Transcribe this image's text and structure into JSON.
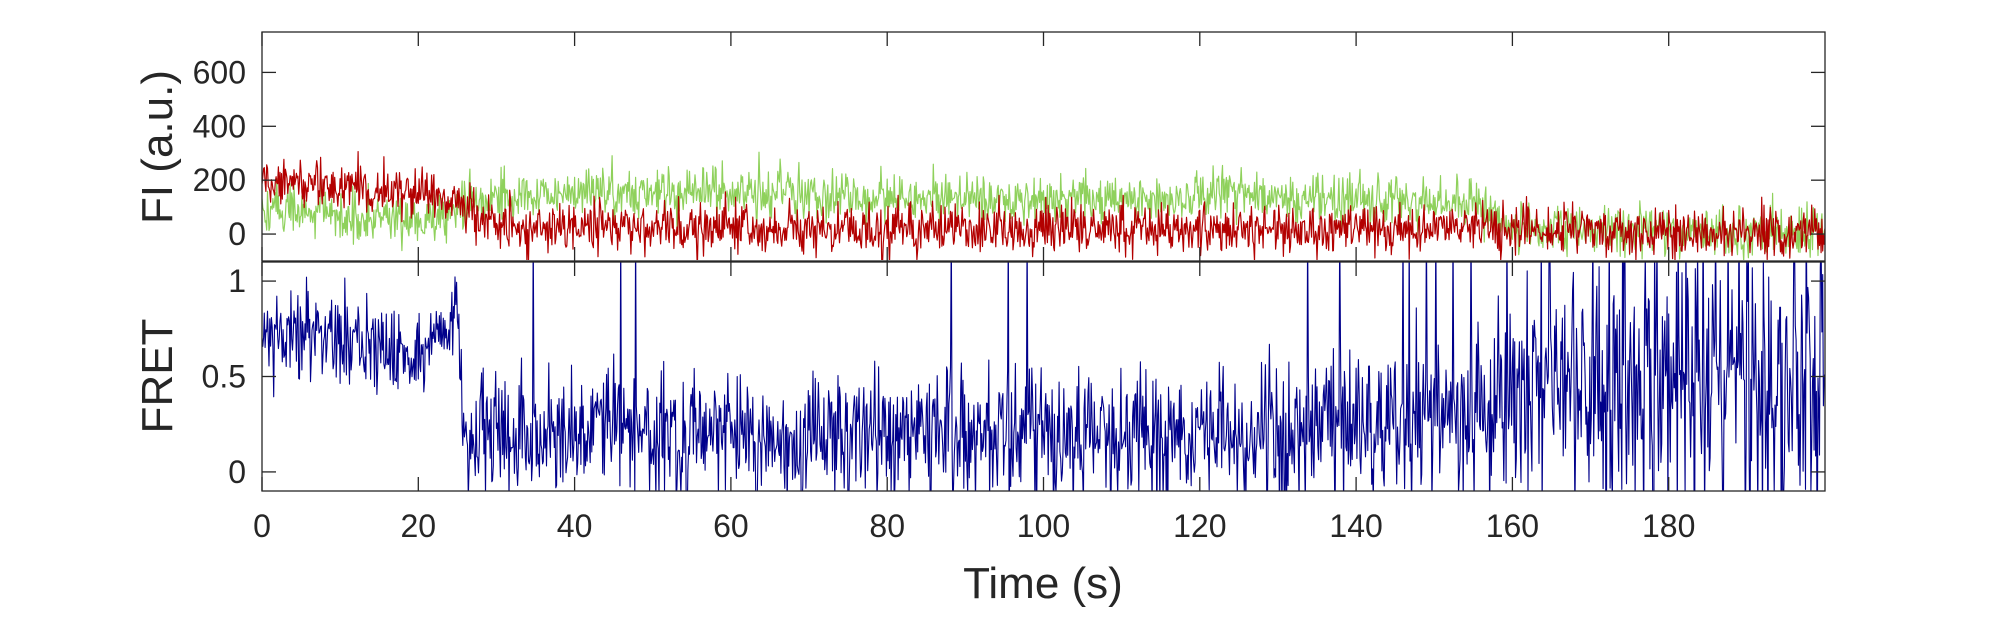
{
  "chart_data": [
    {
      "type": "line",
      "xlabel": "",
      "ylabel": "FI (a.u.)",
      "xlim": [
        0,
        200
      ],
      "ylim": [
        -100,
        750
      ],
      "yticks": [
        0,
        200,
        400,
        600
      ],
      "ytick_labels": [
        "0",
        "200",
        "400",
        "600"
      ],
      "x_tick_labels_shown": false,
      "grid": false,
      "series": [
        {
          "color": "#8fd15c",
          "sample_interval_s": 0.1,
          "mean_profile": {
            "t": [
              0,
              5,
              10,
              15,
              20,
              25,
              30,
              40,
              60,
              80,
              100,
              120,
              140,
              155,
              160,
              180,
              200
            ],
            "value": [
              80,
              90,
              70,
              60,
              50,
              100,
              140,
              160,
              150,
              140,
              120,
              140,
              130,
              120,
              30,
              10,
              0
            ]
          },
          "noise_sd": 45
        },
        {
          "color": "#b30000",
          "sample_interval_s": 0.1,
          "mean_profile": {
            "t": [
              0,
              5,
              10,
              15,
              20,
              25,
              30,
              60,
              100,
              140,
              160,
              180,
              200
            ],
            "value": [
              200,
              190,
              180,
              170,
              150,
              130,
              30,
              20,
              20,
              20,
              20,
              10,
              5
            ]
          },
          "noise_sd": 45
        }
      ]
    },
    {
      "type": "line",
      "xlabel": "Time (s)",
      "ylabel": "FRET",
      "xlim": [
        0,
        200
      ],
      "ylim": [
        -0.1,
        1.1
      ],
      "xticks": [
        0,
        20,
        40,
        60,
        80,
        100,
        120,
        140,
        160,
        180
      ],
      "xtick_labels": [
        "0",
        "20",
        "40",
        "60",
        "80",
        "100",
        "120",
        "140",
        "160",
        "180"
      ],
      "yticks": [
        0,
        0.5,
        1
      ],
      "ytick_labels": [
        "0",
        "0.5",
        "1"
      ],
      "grid": false,
      "series": [
        {
          "color": "#00008b",
          "sample_interval_s": 0.1,
          "mean_profile": {
            "t": [
              0,
              10,
              20,
              25,
              26,
              40,
              60,
              80,
              100,
              120,
              140,
              155,
              165,
              180,
              200
            ],
            "value": [
              0.75,
              0.7,
              0.6,
              0.8,
              0.15,
              0.2,
              0.2,
              0.2,
              0.2,
              0.2,
              0.25,
              0.3,
              0.45,
              0.5,
              0.5
            ]
          },
          "noise_sd_profile": {
            "t": [
              0,
              25,
              26,
              155,
              165,
              200
            ],
            "value": [
              0.1,
              0.12,
              0.15,
              0.2,
              0.35,
              0.38
            ]
          }
        }
      ]
    }
  ]
}
